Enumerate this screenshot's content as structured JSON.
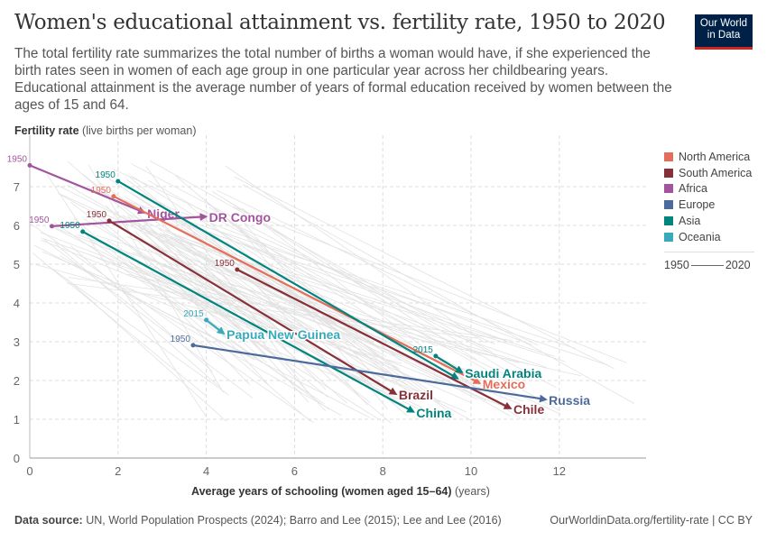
{
  "header": {
    "title": "Women's educational attainment vs. fertility rate, 1950 to 2020",
    "subtitle": "The total fertility rate summarizes the total number of births a woman would have, if she experienced the birth rates seen in women of each age group in one particular year across her childbearing years. Educational attainment is the average number of years of formal education received by women between the ages of 15 and 64.",
    "logo": "Our World in Data"
  },
  "footer": {
    "source_label": "Data source:",
    "source": "UN, World Population Prospects (2024); Barro and Lee (2015); Lee and Lee (2016)",
    "link": "OurWorldinData.org/fertility-rate | CC BY"
  },
  "legend": {
    "connector_start": "1950",
    "connector_end": "2020"
  },
  "chart_data": {
    "type": "scatter",
    "subtype": "connected-arrows",
    "title": "Women's educational attainment vs. fertility rate, 1950 to 2020",
    "xlabel_bold": "Average years of schooling (women aged 15–64)",
    "xlabel_unit": "(years)",
    "ylabel_bold": "Fertility rate",
    "ylabel_unit": "(live births per woman)",
    "xlim": [
      0,
      14
    ],
    "ylim": [
      0,
      8.3
    ],
    "xticks": [
      0,
      2,
      4,
      6,
      8,
      10,
      12
    ],
    "yticks": [
      0,
      1,
      2,
      3,
      4,
      5,
      6,
      7
    ],
    "grid": true,
    "legend_position": "right",
    "regions": [
      {
        "name": "North America",
        "color": "#e56e5a"
      },
      {
        "name": "South America",
        "color": "#883039"
      },
      {
        "name": "Africa",
        "color": "#a2559c"
      },
      {
        "name": "Europe",
        "color": "#4c6a9c"
      },
      {
        "name": "Asia",
        "color": "#00847e"
      },
      {
        "name": "Oceania",
        "color": "#38aaba"
      }
    ],
    "series": [
      {
        "name": "Niger",
        "region": "Africa",
        "start_label": "1950",
        "start": [
          0,
          7.55
        ],
        "end": [
          2.6,
          6.33
        ]
      },
      {
        "name": "DR Congo",
        "region": "Africa",
        "start_label": "1950",
        "start": [
          0.5,
          5.98
        ],
        "end": [
          4.0,
          6.23
        ]
      },
      {
        "name": "Mexico",
        "region": "North America",
        "start_label": "1950",
        "start": [
          1.9,
          6.75
        ],
        "end": [
          10.2,
          1.93
        ]
      },
      {
        "name": "",
        "region": "Asia",
        "start_label": "1950",
        "start": [
          2.0,
          7.14
        ],
        "end": [
          9.7,
          2.05
        ]
      },
      {
        "name": "China",
        "region": "Asia",
        "start_label": "1950",
        "start": [
          1.2,
          5.84
        ],
        "end": [
          8.7,
          1.19
        ]
      },
      {
        "name": "Brazil",
        "region": "South America",
        "start_label": "1950",
        "start": [
          1.8,
          6.12
        ],
        "end": [
          8.3,
          1.65
        ]
      },
      {
        "name": "Chile",
        "region": "South America",
        "start_label": "1950",
        "start": [
          4.7,
          4.86
        ],
        "end": [
          10.9,
          1.28
        ]
      },
      {
        "name": "Russia",
        "region": "Europe",
        "start_label": "1950",
        "start": [
          3.7,
          2.91
        ],
        "end": [
          11.7,
          1.51
        ]
      },
      {
        "name": "Papua New Guinea",
        "region": "Oceania",
        "start_label": "2015",
        "start": [
          4.0,
          3.56
        ],
        "end": [
          4.4,
          3.21
        ]
      },
      {
        "name": "Saudi Arabia",
        "region": "Asia",
        "start_label": "2015",
        "start": [
          9.2,
          2.63
        ],
        "end": [
          9.8,
          2.21
        ]
      }
    ]
  }
}
